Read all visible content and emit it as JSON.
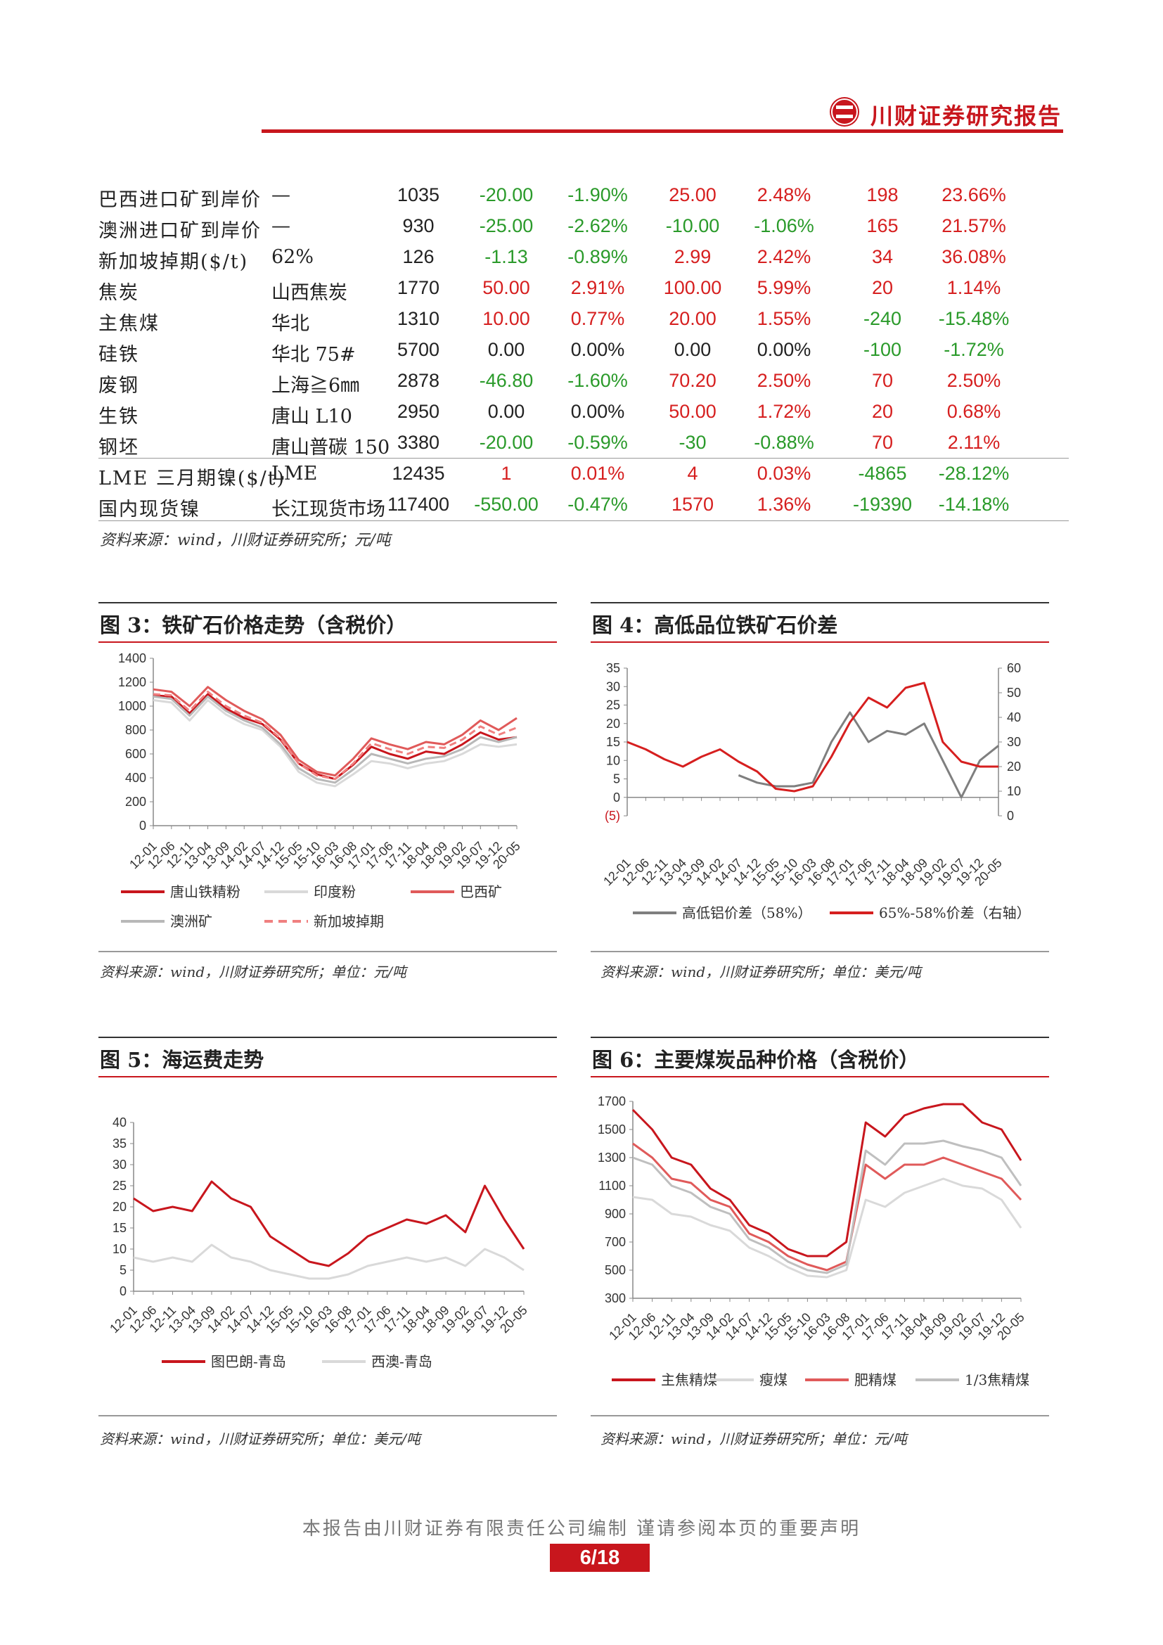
{
  "header": {
    "brand": "川财证券研究报告"
  },
  "table": {
    "rows": [
      {
        "name": "巴西进口矿到岸价",
        "spec": "—",
        "price": "1035",
        "chg1": "-20.00",
        "pct1": "-1.90%",
        "chg2": "25.00",
        "pct2": "2.48%",
        "chg3": "198",
        "pct3": "23.66%",
        "c1": "neg",
        "c2": "pos",
        "c3": "pos"
      },
      {
        "name": "澳洲进口矿到岸价",
        "spec": "—",
        "price": "930",
        "chg1": "-25.00",
        "pct1": "-2.62%",
        "chg2": "-10.00",
        "pct2": "-1.06%",
        "chg3": "165",
        "pct3": "21.57%",
        "c1": "neg",
        "c2": "neg",
        "c3": "pos"
      },
      {
        "name": "新加坡掉期($/t)",
        "spec": "62%",
        "price": "126",
        "chg1": "-1.13",
        "pct1": "-0.89%",
        "chg2": "2.99",
        "pct2": "2.42%",
        "chg3": "34",
        "pct3": "36.08%",
        "c1": "neg",
        "c2": "pos",
        "c3": "pos"
      },
      {
        "name": "焦炭",
        "spec": "山西焦炭",
        "price": "1770",
        "chg1": "50.00",
        "pct1": "2.91%",
        "chg2": "100.00",
        "pct2": "5.99%",
        "chg3": "20",
        "pct3": "1.14%",
        "c1": "pos",
        "c2": "pos",
        "c3": "pos"
      },
      {
        "name": "主焦煤",
        "spec": "华北",
        "price": "1310",
        "chg1": "10.00",
        "pct1": "0.77%",
        "chg2": "20.00",
        "pct2": "1.55%",
        "chg3": "-240",
        "pct3": "-15.48%",
        "c1": "pos",
        "c2": "pos",
        "c3": "neg"
      },
      {
        "name": "硅铁",
        "spec": "华北 75#",
        "price": "5700",
        "chg1": "0.00",
        "pct1": "0.00%",
        "chg2": "0.00",
        "pct2": "0.00%",
        "chg3": "-100",
        "pct3": "-1.72%",
        "c1": "zero",
        "c2": "zero",
        "c3": "neg"
      },
      {
        "name": "废钢",
        "spec": "上海≧6㎜",
        "price": "2878",
        "chg1": "-46.80",
        "pct1": "-1.60%",
        "chg2": "70.20",
        "pct2": "2.50%",
        "chg3": "70",
        "pct3": "2.50%",
        "c1": "neg",
        "c2": "pos",
        "c3": "pos"
      },
      {
        "name": "生铁",
        "spec": "唐山 L10",
        "price": "2950",
        "chg1": "0.00",
        "pct1": "0.00%",
        "chg2": "50.00",
        "pct2": "1.72%",
        "chg3": "20",
        "pct3": "0.68%",
        "c1": "zero",
        "c2": "pos",
        "c3": "pos"
      },
      {
        "name": "钢坯",
        "spec": "唐山普碳 150",
        "price": "3380",
        "chg1": "-20.00",
        "pct1": "-0.59%",
        "chg2": "-30",
        "pct2": "-0.88%",
        "chg3": "70",
        "pct3": "2.11%",
        "c1": "neg",
        "c2": "neg",
        "c3": "pos"
      },
      {
        "name": "LME 三月期镍($/t)",
        "spec": "LME",
        "price": "12435",
        "chg1": "1",
        "pct1": "0.01%",
        "chg2": "4",
        "pct2": "0.03%",
        "chg3": "-4865",
        "pct3": "-28.12%",
        "c1": "pos",
        "c2": "pos",
        "c3": "neg"
      },
      {
        "name": "国内现货镍",
        "spec": "长江现货市场",
        "price": "117400",
        "chg1": "-550.00",
        "pct1": "-0.47%",
        "chg2": "1570",
        "pct2": "1.36%",
        "chg3": "-19390",
        "pct3": "-14.18%",
        "c1": "neg",
        "c2": "pos",
        "c3": "neg"
      }
    ],
    "source": "资料来源：wind，川财证券研究所；元/吨"
  },
  "colors": {
    "brand_red": "#c8161d",
    "up": "#d61f1f",
    "down": "#2a9a2a"
  },
  "figures": {
    "fig3": {
      "title": "图 3：铁矿石价格走势（含税价）",
      "source": "资料来源：wind，川财证券研究所；单位：元/吨"
    },
    "fig4": {
      "title": "图 4：高低品位铁矿石价差",
      "source": "资料来源：wind，川财证券研究所；单位：美元/吨"
    },
    "fig5": {
      "title": "图 5：海运费走势",
      "source": "资料来源：wind，川财证券研究所；单位：美元/吨"
    },
    "fig6": {
      "title": "图 6：主要煤炭品种价格（含税价）",
      "source": "资料来源：wind，川财证券研究所；单位：元/吨"
    }
  },
  "chart_data": [
    {
      "id": "fig3",
      "type": "line",
      "x": [
        "12-01",
        "12-06",
        "12-11",
        "13-04",
        "13-09",
        "14-02",
        "14-07",
        "14-12",
        "15-05",
        "15-10",
        "16-03",
        "16-08",
        "17-01",
        "17-06",
        "17-11",
        "18-04",
        "18-09",
        "19-02",
        "19-07",
        "19-12",
        "20-05"
      ],
      "ylim": [
        0,
        1400
      ],
      "yticks": [
        0,
        200,
        400,
        600,
        800,
        1000,
        1200,
        1400
      ],
      "series": [
        {
          "name": "唐山铁精粉",
          "color": "#c8161d",
          "style": "solid",
          "values": [
            1090,
            1080,
            940,
            1100,
            980,
            900,
            850,
            720,
            520,
            430,
            390,
            510,
            660,
            600,
            560,
            620,
            600,
            680,
            780,
            720,
            740
          ]
        },
        {
          "name": "印度粉",
          "color": "#d9d9d9",
          "style": "solid",
          "values": [
            1050,
            1030,
            880,
            1050,
            930,
            850,
            800,
            660,
            450,
            360,
            330,
            430,
            540,
            520,
            480,
            520,
            540,
            600,
            680,
            660,
            680
          ]
        },
        {
          "name": "巴西矿",
          "color": "#e05a5a",
          "style": "solid",
          "values": [
            1140,
            1120,
            1000,
            1160,
            1050,
            960,
            890,
            760,
            550,
            450,
            420,
            560,
            730,
            680,
            640,
            700,
            680,
            760,
            880,
            800,
            900
          ]
        },
        {
          "name": "澳洲矿",
          "color": "#b8b8b8",
          "style": "solid",
          "values": [
            1080,
            1060,
            920,
            1080,
            960,
            880,
            820,
            680,
            480,
            390,
            360,
            470,
            600,
            560,
            520,
            560,
            580,
            640,
            740,
            700,
            740
          ]
        },
        {
          "name": "新加坡掉期",
          "color": "#f08080",
          "style": "dash",
          "values": [
            1100,
            1090,
            960,
            1120,
            1000,
            920,
            860,
            730,
            520,
            420,
            390,
            520,
            690,
            640,
            600,
            660,
            650,
            720,
            830,
            760,
            820
          ]
        }
      ]
    },
    {
      "id": "fig4",
      "type": "line",
      "x": [
        "12-01",
        "12-06",
        "12-11",
        "13-04",
        "13-09",
        "14-02",
        "14-07",
        "14-12",
        "15-05",
        "15-10",
        "16-03",
        "16-08",
        "17-01",
        "17-06",
        "17-11",
        "18-04",
        "18-09",
        "19-02",
        "19-07",
        "19-12",
        "20-05"
      ],
      "ylim": [
        -5,
        35
      ],
      "yticks_left": [
        "(5)",
        "0",
        "5",
        "10",
        "15",
        "20",
        "25",
        "30",
        "35"
      ],
      "ylim_right": [
        0,
        60
      ],
      "yticks_right": [
        0,
        10,
        20,
        30,
        40,
        50,
        60
      ],
      "series": [
        {
          "name": "高低铝价差（58%）",
          "color": "#7f7f7f",
          "axis": "left",
          "values": [
            null,
            null,
            null,
            null,
            null,
            null,
            6,
            4,
            3,
            3,
            4,
            15,
            23,
            15,
            18,
            17,
            20,
            10,
            0,
            10,
            14
          ]
        },
        {
          "name": "65%-58%价差（右轴）",
          "color": "#d61f1f",
          "axis": "right",
          "values": [
            30,
            27,
            23,
            20,
            24,
            27,
            22,
            18,
            11,
            10,
            12,
            24,
            38,
            48,
            44,
            52,
            54,
            30,
            22,
            20,
            20
          ]
        }
      ]
    },
    {
      "id": "fig5",
      "type": "line",
      "x": [
        "12-01",
        "12-06",
        "12-11",
        "13-04",
        "13-09",
        "14-02",
        "14-07",
        "14-12",
        "15-05",
        "15-10",
        "16-03",
        "16-08",
        "17-01",
        "17-06",
        "17-11",
        "18-04",
        "18-09",
        "19-02",
        "19-07",
        "19-12",
        "20-05"
      ],
      "ylim": [
        0,
        40
      ],
      "yticks": [
        0,
        5,
        10,
        15,
        20,
        25,
        30,
        35,
        40
      ],
      "series": [
        {
          "name": "图巴朗-青岛",
          "color": "#c8161d",
          "values": [
            22,
            19,
            20,
            19,
            26,
            22,
            20,
            13,
            10,
            7,
            6,
            9,
            13,
            15,
            17,
            16,
            18,
            14,
            25,
            17,
            10
          ]
        },
        {
          "name": "西澳-青岛",
          "color": "#d9d9d9",
          "values": [
            8,
            7,
            8,
            7,
            11,
            8,
            7,
            5,
            4,
            3,
            3,
            4,
            6,
            7,
            8,
            7,
            8,
            6,
            10,
            8,
            5
          ]
        }
      ]
    },
    {
      "id": "fig6",
      "type": "line",
      "x": [
        "12-01",
        "12-06",
        "12-11",
        "13-04",
        "13-09",
        "14-02",
        "14-07",
        "14-12",
        "15-05",
        "15-10",
        "16-03",
        "16-08",
        "17-01",
        "17-06",
        "17-11",
        "18-04",
        "18-09",
        "19-02",
        "19-07",
        "19-12",
        "20-05"
      ],
      "ylim": [
        300,
        1700
      ],
      "yticks": [
        300,
        500,
        700,
        900,
        1100,
        1300,
        1500,
        1700
      ],
      "series": [
        {
          "name": "主焦精煤",
          "color": "#c8161d",
          "values": [
            1640,
            1500,
            1300,
            1250,
            1080,
            1000,
            820,
            760,
            650,
            600,
            600,
            700,
            1550,
            1450,
            1600,
            1650,
            1680,
            1680,
            1550,
            1500,
            1280
          ]
        },
        {
          "name": "瘦煤",
          "color": "#d9d9d9",
          "values": [
            1020,
            1000,
            900,
            880,
            820,
            780,
            660,
            600,
            520,
            460,
            450,
            500,
            1000,
            950,
            1050,
            1100,
            1150,
            1100,
            1080,
            1000,
            800
          ]
        },
        {
          "name": "肥精煤",
          "color": "#e05a5a",
          "values": [
            1400,
            1300,
            1150,
            1120,
            1000,
            950,
            760,
            700,
            600,
            540,
            500,
            560,
            1250,
            1150,
            1250,
            1250,
            1300,
            1250,
            1200,
            1150,
            1000
          ]
        },
        {
          "name": "1/3焦精煤",
          "color": "#bfbfbf",
          "values": [
            1300,
            1250,
            1100,
            1050,
            950,
            900,
            720,
            660,
            560,
            500,
            480,
            540,
            1350,
            1250,
            1400,
            1400,
            1420,
            1380,
            1350,
            1300,
            1100
          ]
        }
      ]
    }
  ],
  "footer": {
    "disclaimer": "本报告由川财证券有限责任公司编制  谨请参阅本页的重要声明",
    "page": "6/18"
  }
}
